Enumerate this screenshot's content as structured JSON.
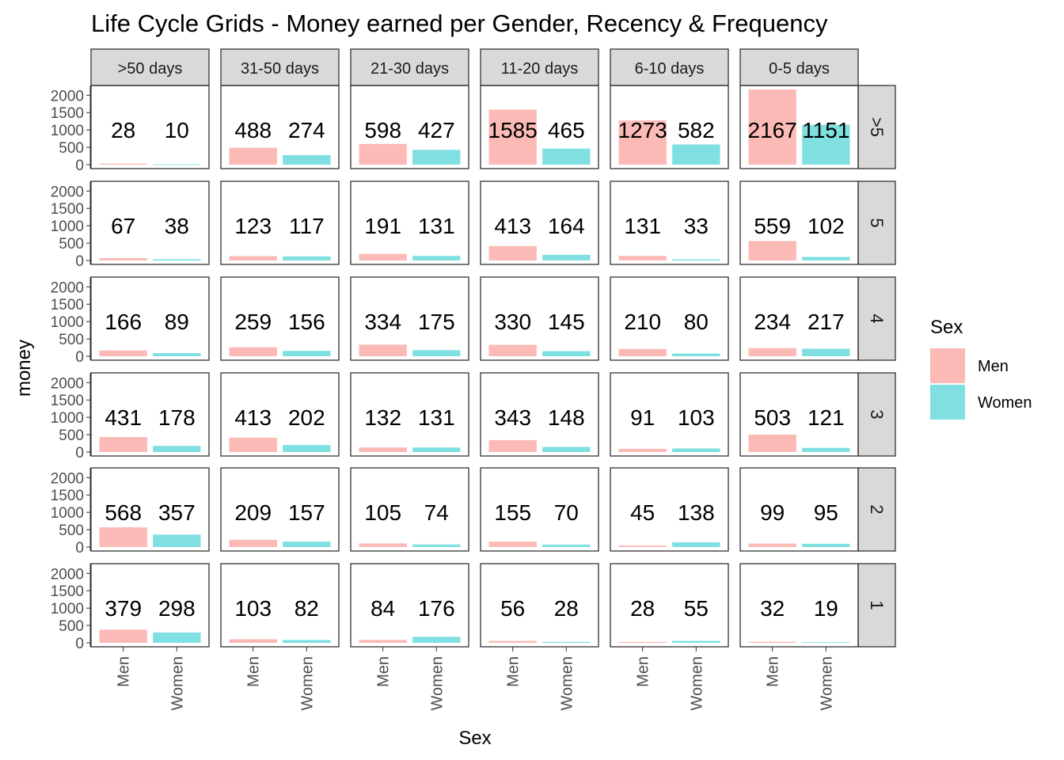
{
  "chart_data": {
    "type": "bar",
    "title": "Life Cycle Grids - Money earned per Gender, Recency & Frequency",
    "xlabel": "Sex",
    "ylabel": "money",
    "ylim": [
      0,
      2167
    ],
    "yticks": [
      0,
      500,
      1000,
      1500,
      2000
    ],
    "ytick_labels": [
      "0",
      "500",
      "1000",
      "1500",
      "2000"
    ],
    "categories": [
      "Men",
      "Women"
    ],
    "column_facets": [
      ">50 days",
      "31-50 days",
      "21-30 days",
      "11-20 days",
      "6-10 days",
      "0-5 days"
    ],
    "row_facets": [
      ">5",
      "5",
      "4",
      "3",
      "2",
      "1"
    ],
    "values": [
      [
        [
          28,
          10
        ],
        [
          488,
          274
        ],
        [
          598,
          427
        ],
        [
          1585,
          465
        ],
        [
          1273,
          582
        ],
        [
          2167,
          1151
        ]
      ],
      [
        [
          67,
          38
        ],
        [
          123,
          117
        ],
        [
          191,
          131
        ],
        [
          413,
          164
        ],
        [
          131,
          33
        ],
        [
          559,
          102
        ]
      ],
      [
        [
          166,
          89
        ],
        [
          259,
          156
        ],
        [
          334,
          175
        ],
        [
          330,
          145
        ],
        [
          210,
          80
        ],
        [
          234,
          217
        ]
      ],
      [
        [
          431,
          178
        ],
        [
          413,
          202
        ],
        [
          132,
          131
        ],
        [
          343,
          148
        ],
        [
          91,
          103
        ],
        [
          503,
          121
        ]
      ],
      [
        [
          568,
          357
        ],
        [
          209,
          157
        ],
        [
          105,
          74
        ],
        [
          155,
          70
        ],
        [
          45,
          138
        ],
        [
          99,
          95
        ]
      ],
      [
        [
          379,
          298
        ],
        [
          103,
          82
        ],
        [
          84,
          176
        ],
        [
          56,
          28
        ],
        [
          28,
          55
        ],
        [
          32,
          19
        ]
      ]
    ],
    "legend": {
      "title": "Sex",
      "position": "right",
      "entries": [
        {
          "label": "Men",
          "color": "#f8766d"
        },
        {
          "label": "Women",
          "color": "#00bfc4"
        }
      ]
    },
    "grid": false
  }
}
